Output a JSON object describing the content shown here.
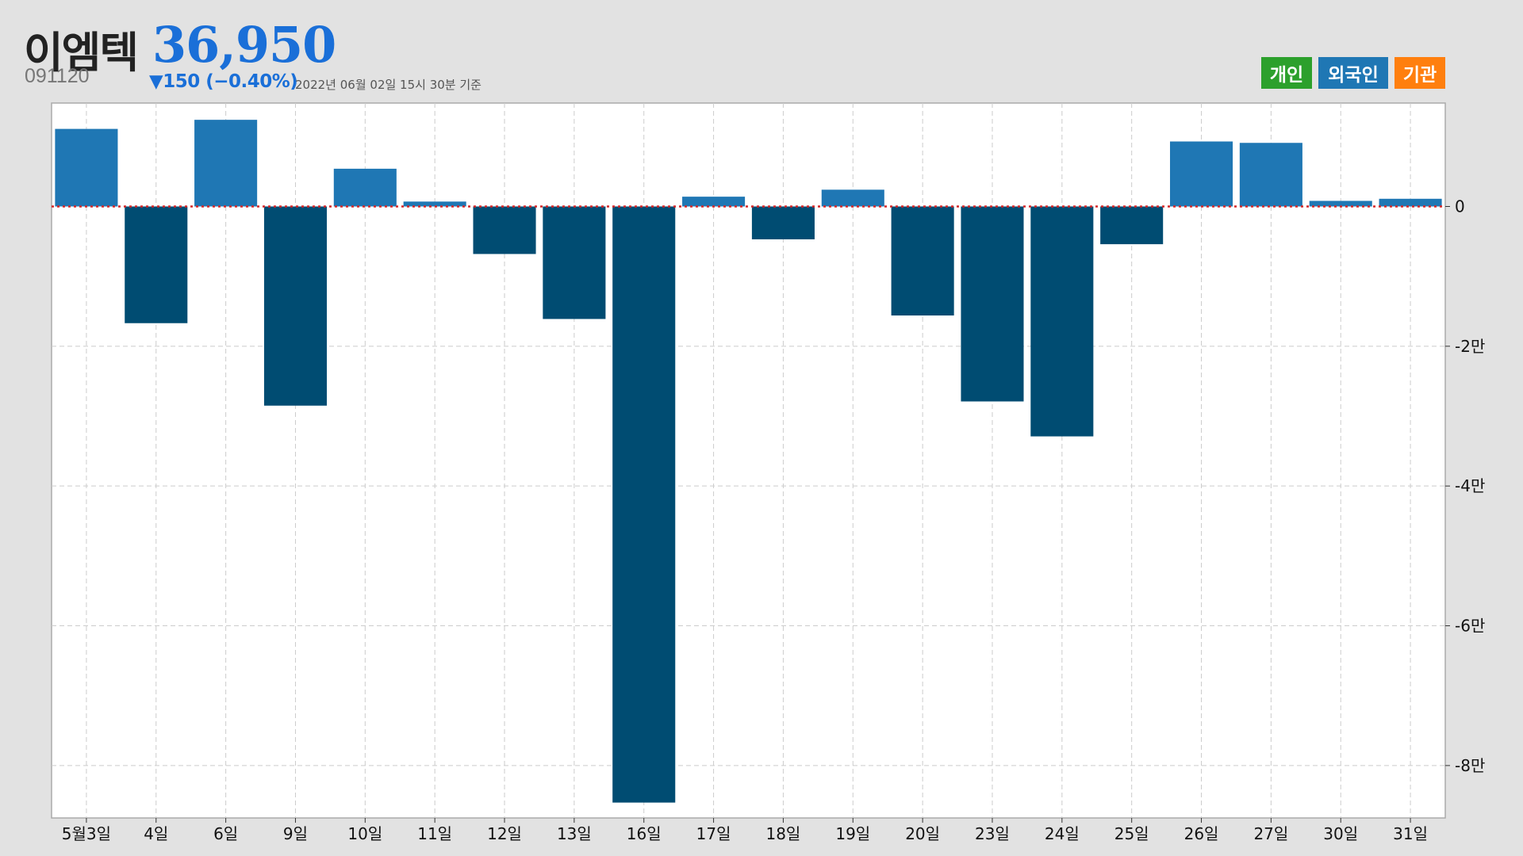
{
  "header": {
    "stock_name": "이엠텍",
    "price": "36,950",
    "code": "091120",
    "change": "▼150 (−0.40%)",
    "as_of": "2022년 06월 02일 15시 30분 기준"
  },
  "tabs": [
    {
      "label": "개인",
      "color": "#2ca02c"
    },
    {
      "label": "외국인",
      "color": "#1f77b4"
    },
    {
      "label": "기관",
      "color": "#ff7f0e"
    }
  ],
  "colors": {
    "positive_bar": "#1f77b4",
    "negative_bar": "#004c72",
    "zero_line": "#d62728",
    "accent": "#1a6fd8"
  },
  "chart_data": {
    "type": "bar",
    "categories": [
      "5월3일",
      "4일",
      "6일",
      "9일",
      "10일",
      "11일",
      "12일",
      "13일",
      "16일",
      "17일",
      "18일",
      "19일",
      "20일",
      "23일",
      "24일",
      "25일",
      "26일",
      "27일",
      "30일",
      "31일"
    ],
    "values": [
      11100,
      -16700,
      12400,
      -28500,
      5400,
      700,
      -6800,
      -16100,
      -85300,
      1400,
      -4700,
      2400,
      -15600,
      -27900,
      -32900,
      -5400,
      9300,
      9100,
      800,
      1100
    ],
    "y_ticks": [
      0,
      -20000,
      -40000,
      -60000,
      -80000
    ],
    "y_tick_labels": [
      "0",
      "-2만",
      "-4만",
      "-6만",
      "-8만"
    ],
    "ylim": [
      -87500,
      14800
    ],
    "grid": true,
    "y_axis_side": "right",
    "zero_line_style": "dotted-red"
  }
}
